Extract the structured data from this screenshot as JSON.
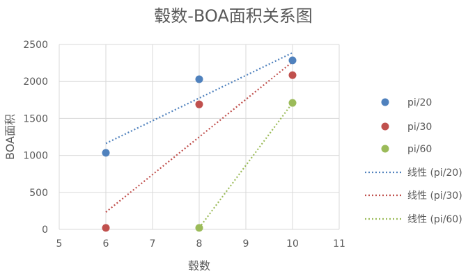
{
  "chart_data": {
    "type": "scatter",
    "title": "毂数-BOA面积关系图",
    "xlabel": "毂数",
    "ylabel": "BOA面积",
    "xlim": [
      5,
      11
    ],
    "ylim": [
      0,
      2500
    ],
    "x_ticks": [
      "5",
      "6",
      "7",
      "8",
      "9",
      "10",
      "11"
    ],
    "y_ticks": [
      "0",
      "500",
      "1000",
      "1500",
      "2000",
      "2500"
    ],
    "grid": true,
    "legend_position": "right",
    "series": [
      {
        "name": "pi/20",
        "color": "#4F81BD",
        "x": [
          6,
          8,
          10
        ],
        "y": [
          1035,
          2030,
          2285
        ]
      },
      {
        "name": "pi/30",
        "color": "#C0504D",
        "x": [
          6,
          8,
          10
        ],
        "y": [
          20,
          1690,
          2085
        ]
      },
      {
        "name": "pi/60",
        "color": "#9BBB59",
        "x": [
          8,
          10
        ],
        "y": [
          20,
          1710
        ]
      }
    ],
    "trendlines": [
      {
        "name": "线性 (pi/20)",
        "color": "#4F81BD",
        "style": "dotted",
        "x": [
          6,
          10
        ],
        "y": [
          1162,
          2388
        ]
      },
      {
        "name": "线性 (pi/30)",
        "color": "#C0504D",
        "style": "dotted",
        "x": [
          6,
          10
        ],
        "y": [
          233,
          2265
        ]
      },
      {
        "name": "线性 (pi/60)",
        "color": "#9BBB59",
        "style": "dotted",
        "x": [
          8,
          10
        ],
        "y": [
          20,
          1710
        ]
      }
    ]
  }
}
